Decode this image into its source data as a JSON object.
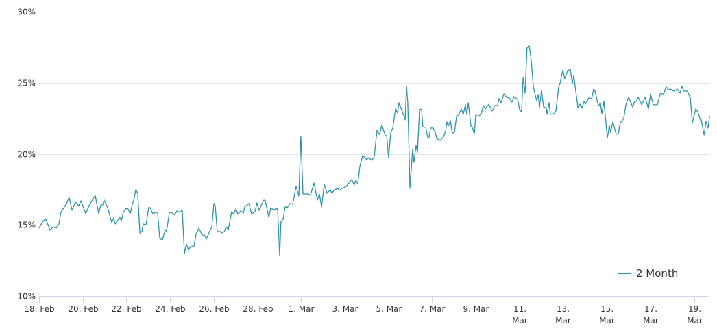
{
  "colors": {
    "series": "#2f92a6",
    "grid": "#e6e6e6",
    "axis": "#ccd6eb",
    "text": "#333333"
  },
  "chart_data": {
    "type": "line",
    "title": "",
    "xlabel": "",
    "ylabel": "",
    "x_unit": "days since 18 Feb",
    "xlim": [
      0,
      30.71
    ],
    "ylim": [
      10,
      30
    ],
    "grid": true,
    "legend_position": "bottom-right",
    "y_ticks": [
      {
        "value": 10,
        "label": "10%"
      },
      {
        "value": 15,
        "label": "15%"
      },
      {
        "value": 20,
        "label": "20%"
      },
      {
        "value": 25,
        "label": "25%"
      },
      {
        "value": 30,
        "label": "30%"
      }
    ],
    "x_ticks": [
      {
        "value": 0,
        "label": "18. Feb"
      },
      {
        "value": 2,
        "label": "20. Feb"
      },
      {
        "value": 4,
        "label": "22. Feb"
      },
      {
        "value": 6,
        "label": "24. Feb"
      },
      {
        "value": 8,
        "label": "26. Feb"
      },
      {
        "value": 10,
        "label": "28. Feb"
      },
      {
        "value": 12,
        "label": "1. Mar"
      },
      {
        "value": 14,
        "label": "3. Mar"
      },
      {
        "value": 16,
        "label": "5. Mar"
      },
      {
        "value": 18,
        "label": "7. Mar"
      },
      {
        "value": 20,
        "label": "9. Mar"
      },
      {
        "value": 22,
        "label": "11. Mar"
      },
      {
        "value": 24,
        "label": "13. Mar"
      },
      {
        "value": 26,
        "label": "15. Mar"
      },
      {
        "value": 28,
        "label": "17. Mar"
      },
      {
        "value": 30,
        "label": "19. Mar"
      }
    ],
    "series": [
      {
        "name": "2 Month",
        "x": [
          0,
          0.19,
          0.31,
          0.5,
          0.66,
          0.78,
          0.91,
          1.0,
          1.26,
          1.38,
          1.51,
          1.66,
          1.82,
          1.92,
          2.14,
          2.29,
          2.57,
          2.73,
          2.83,
          2.92,
          2.98,
          3.14,
          3.33,
          3.42,
          3.49,
          3.7,
          3.77,
          3.86,
          3.99,
          4.08,
          4.18,
          4.27,
          4.33,
          4.43,
          4.52,
          4.62,
          4.71,
          4.77,
          4.9,
          5.02,
          5.09,
          5.21,
          5.34,
          5.43,
          5.53,
          5.65,
          5.78,
          5.84,
          5.97,
          6.06,
          6.22,
          6.31,
          6.44,
          6.56,
          6.66,
          6.75,
          6.84,
          6.94,
          7.1,
          7.19,
          7.32,
          7.47,
          7.57,
          7.66,
          7.85,
          7.91,
          8.01,
          8.07,
          8.16,
          8.32,
          8.35,
          8.48,
          8.57,
          8.67,
          8.82,
          8.92,
          9.01,
          9.11,
          9.23,
          9.36,
          9.42,
          9.61,
          9.73,
          9.89,
          9.98,
          10.08,
          10.2,
          10.3,
          10.36,
          10.52,
          10.61,
          10.77,
          10.89,
          10.93,
          11.02,
          11.08,
          11.18,
          11.27,
          11.37,
          11.49,
          11.62,
          11.77,
          11.9,
          11.99,
          12.09,
          12.34,
          12.43,
          12.59,
          12.75,
          12.84,
          12.94,
          13.06,
          13.19,
          13.34,
          13.41,
          13.53,
          13.69,
          13.75,
          13.88,
          14.07,
          14.16,
          14.32,
          14.44,
          14.51,
          14.6,
          14.69,
          14.82,
          15.01,
          15.1,
          15.23,
          15.35,
          15.48,
          15.6,
          15.7,
          15.86,
          15.92,
          16.01,
          16.11,
          16.2,
          16.33,
          16.42,
          16.48,
          16.64,
          16.77,
          16.83,
          16.89,
          16.99,
          17.11,
          17.17,
          17.27,
          17.33,
          17.43,
          17.52,
          17.58,
          17.71,
          17.8,
          17.86,
          17.93,
          18.05,
          18.15,
          18.21,
          18.37,
          18.52,
          18.62,
          18.68,
          18.74,
          18.84,
          18.93,
          19.03,
          19.12,
          19.21,
          19.34,
          19.43,
          19.53,
          19.59,
          19.66,
          19.78,
          19.84,
          19.94,
          20.0,
          20.13,
          20.25,
          20.35,
          20.44,
          20.6,
          20.75,
          20.88,
          21.0,
          21.07,
          21.16,
          21.29,
          21.41,
          21.54,
          21.66,
          21.76,
          21.92,
          22.01,
          22.1,
          22.17,
          22.26,
          22.35,
          22.45,
          22.54,
          22.64,
          22.79,
          22.86,
          22.92,
          23.01,
          23.11,
          23.23,
          23.27,
          23.36,
          23.42,
          23.58,
          23.67,
          23.8,
          23.86,
          23.99,
          24.08,
          24.21,
          24.33,
          24.43,
          24.49,
          24.68,
          24.77,
          24.87,
          24.96,
          25.02,
          25.18,
          25.31,
          25.4,
          25.46,
          25.62,
          25.71,
          25.78,
          25.87,
          26.03,
          26.12,
          26.18,
          26.28,
          26.44,
          26.53,
          26.62,
          26.78,
          26.88,
          27.0,
          27.19,
          27.28,
          27.35,
          27.44,
          27.6,
          27.76,
          27.91,
          28.01,
          28.13,
          28.26,
          28.32,
          28.45,
          28.6,
          28.73,
          28.82,
          28.92,
          29.07,
          29.23,
          29.36,
          29.45,
          29.54,
          29.7,
          29.83,
          29.92,
          30.08,
          30.17,
          30.3,
          30.33,
          30.46,
          30.55,
          30.64,
          30.71
        ],
        "values": [
          14.77,
          15.3,
          15.4,
          14.63,
          14.87,
          14.77,
          15.06,
          15.88,
          16.51,
          16.94,
          16.03,
          16.6,
          16.36,
          16.7,
          15.78,
          16.36,
          17.09,
          15.78,
          16.41,
          16.41,
          16.75,
          16.22,
          15.16,
          15.5,
          15.06,
          15.54,
          15.3,
          15.88,
          16.17,
          16.12,
          15.78,
          16.46,
          16.7,
          17.47,
          17.23,
          14.43,
          14.53,
          15.06,
          15.01,
          16.22,
          16.22,
          15.78,
          15.88,
          15.88,
          14.05,
          13.95,
          14.68,
          14.53,
          15.88,
          15.88,
          15.69,
          15.98,
          15.88,
          16.03,
          12.99,
          13.66,
          13.23,
          13.47,
          13.52,
          14.34,
          14.77,
          14.29,
          14.29,
          14.0,
          14.68,
          14.82,
          16.51,
          16.36,
          14.53,
          14.53,
          14.43,
          14.53,
          14.82,
          14.68,
          15.93,
          15.74,
          16.12,
          15.74,
          15.98,
          15.83,
          16.27,
          16.51,
          15.78,
          15.93,
          16.56,
          16.03,
          16.46,
          16.75,
          16.7,
          15.54,
          16.17,
          16.07,
          16.17,
          16.03,
          12.84,
          15.25,
          15.4,
          16.27,
          16.22,
          16.51,
          16.46,
          17.71,
          17.04,
          21.23,
          17.18,
          17.18,
          17.08,
          17.95,
          16.75,
          17.18,
          16.27,
          17.86,
          17.23,
          17.47,
          17.23,
          17.47,
          17.57,
          17.42,
          17.57,
          17.71,
          17.9,
          18.19,
          17.81,
          18.15,
          17.9,
          19.11,
          19.88,
          19.59,
          19.74,
          19.54,
          19.78,
          21.66,
          21.37,
          22.05,
          21.28,
          21.28,
          19.74,
          21.52,
          21.81,
          23.2,
          22.87,
          23.59,
          22.96,
          22.39,
          24.75,
          23.59,
          17.57,
          20.36,
          19.4,
          20.6,
          20.07,
          23.16,
          23.11,
          21.9,
          21.86,
          21.18,
          21.13,
          21.81,
          21.81,
          21.52,
          21.08,
          20.94,
          21.18,
          21.57,
          22.24,
          21.95,
          22.34,
          21.42,
          21.57,
          22.63,
          22.72,
          23.16,
          22.77,
          23.45,
          22.77,
          23.59,
          21.95,
          21.86,
          21.42,
          22.72,
          22.63,
          22.82,
          23.4,
          23.16,
          23.49,
          23.01,
          23.4,
          23.4,
          23.88,
          23.59,
          24.22,
          23.98,
          23.93,
          23.64,
          24.02,
          23.83,
          23.11,
          22.96,
          25.37,
          24.26,
          27.45,
          27.59,
          26.63,
          24.7,
          23.74,
          24.17,
          23.25,
          24.46,
          23.3,
          23.25,
          22.77,
          23.59,
          22.77,
          22.82,
          23.01,
          24.7,
          24.94,
          25.9,
          25.28,
          25.86,
          25.95,
          24.94,
          25.52,
          23.25,
          23.49,
          23.25,
          23.69,
          23.49,
          23.93,
          23.88,
          24.55,
          24.46,
          23.35,
          23.59,
          22.82,
          23.69,
          21.13,
          22.0,
          21.52,
          22.24,
          21.37,
          21.42,
          22.19,
          22.48,
          23.45,
          23.98,
          23.3,
          23.69,
          23.69,
          23.98,
          23.45,
          23.98,
          23.16,
          24.22,
          23.45,
          23.45,
          23.45,
          24.22,
          24.22,
          24.7,
          24.51,
          24.55,
          24.41,
          24.55,
          24.27,
          24.75,
          24.41,
          24.41,
          23.93,
          22.19,
          23.16,
          22.96,
          22.34,
          22.39,
          21.33,
          22.29,
          21.81,
          22.63
        ]
      }
    ]
  }
}
